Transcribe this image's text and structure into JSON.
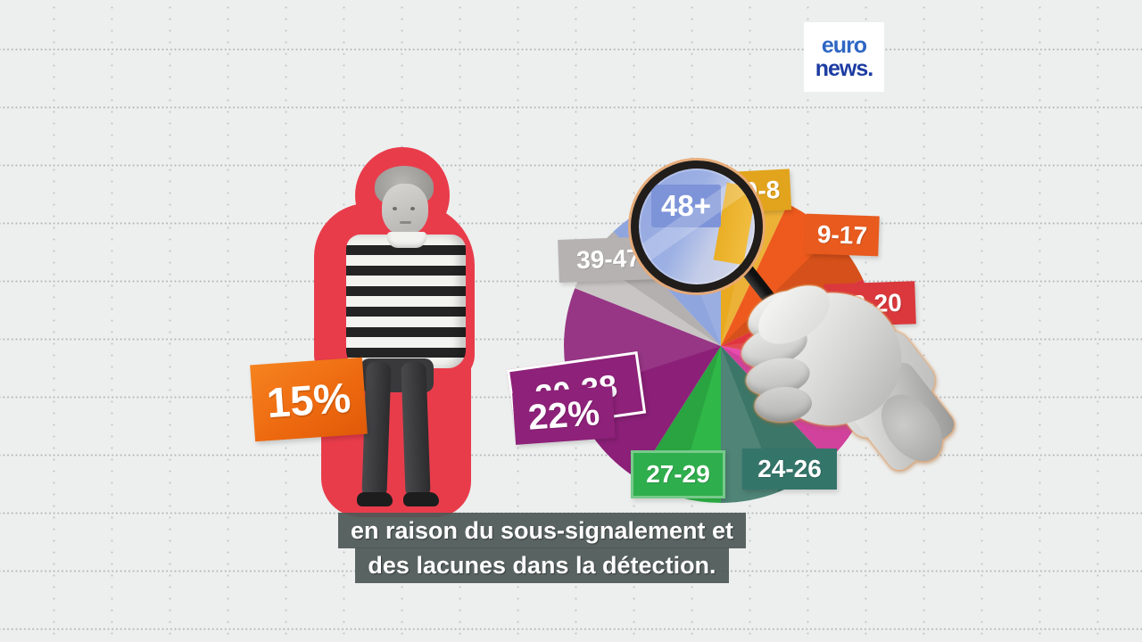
{
  "branding": {
    "logo_line1": "euro",
    "logo_line2": "news."
  },
  "subtitles": {
    "line1": "en raison du sous-signalement et",
    "line2": "des lacunes dans la détection."
  },
  "infographic": {
    "child_stat_value": "15%",
    "child_stat_color": "#ee6a10",
    "silhouette_color": "#e93c4b",
    "magnifier_label": "48+"
  },
  "chart_data": {
    "type": "pie",
    "title": "",
    "legend_position": "around-slices",
    "value_labels_visible": [
      "22%"
    ],
    "slices": [
      {
        "label": "0-8",
        "pct_estimated": 7,
        "color": "#e9aa21",
        "chip_color": "#e2a41d"
      },
      {
        "label": "9-17",
        "pct_estimated": 11,
        "color": "#ee5a1d",
        "chip_color": "#e85a1e"
      },
      {
        "label": "18-20",
        "pct_estimated": 10,
        "color": "#e0353e",
        "chip_color": "#da383c"
      },
      {
        "label": "",
        "pct_estimated": 10,
        "color": "#e84aae",
        "chip_color": "",
        "note": "label hidden behind hand"
      },
      {
        "label": "24-26",
        "pct_estimated": 12,
        "color": "#3b7668",
        "chip_color": "#34756a"
      },
      {
        "label": "27-29",
        "pct_estimated": 9,
        "color": "#2fb748",
        "chip_color": "#2fae4d"
      },
      {
        "label": "30-38",
        "pct_estimated": 22,
        "pct_label": "22%",
        "color": "#8c2078",
        "chip_color": "#8e2179"
      },
      {
        "label": "39-47",
        "pct_estimated": 7,
        "color": "#c9c5c5",
        "chip_color": "#b6b2b2"
      },
      {
        "label": "48+",
        "pct_estimated": 12,
        "color": "#8fa5de",
        "chip_color": "#8096d8"
      }
    ]
  }
}
